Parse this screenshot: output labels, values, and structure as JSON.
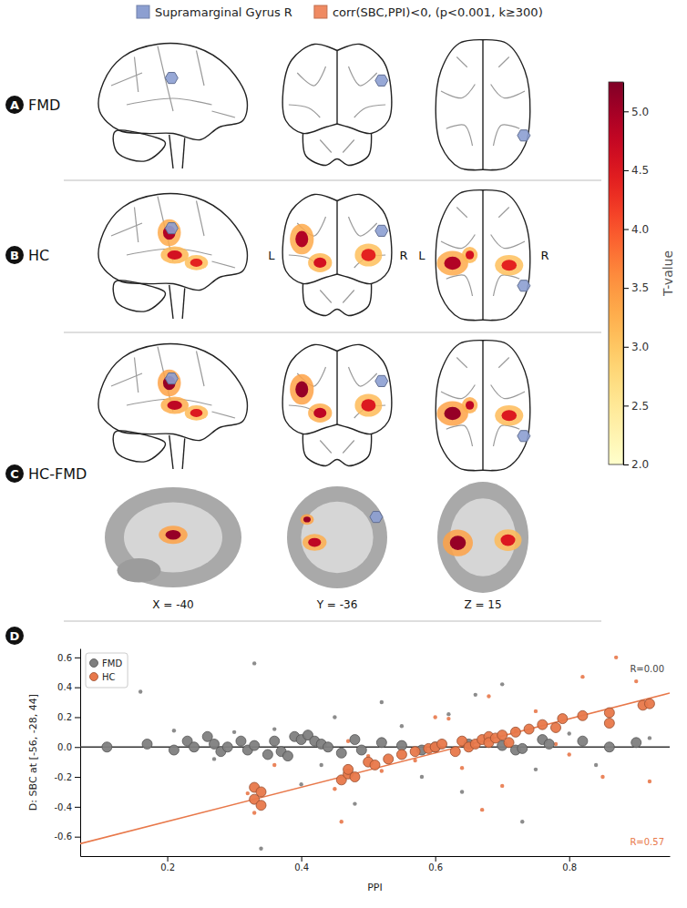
{
  "figure": {
    "legend": [
      {
        "label": "Supramarginal Gyrus R",
        "color": "#8c9fd1"
      },
      {
        "label": "corr(SBC,PPI)<0, (p<0.001, k≥300)",
        "color": "#ef8a62"
      }
    ],
    "panels": [
      {
        "letter": "A",
        "label": "FMD",
        "clusters": []
      },
      {
        "letter": "B",
        "label": "HC",
        "side_labels": [
          "L",
          "R"
        ],
        "clusters": [
          {
            "peak_t": 4.9
          },
          {
            "peak_t": 4.6
          },
          {
            "peak_t": 4.4
          }
        ]
      },
      {
        "letter": "C",
        "label": "HC-FMD",
        "clusters": [
          {
            "peak_t": 5.1
          },
          {
            "peak_t": 4.8
          },
          {
            "peak_t": 4.5
          }
        ],
        "slices": [
          "X = -40",
          "Y = -36",
          "Z = 15"
        ]
      }
    ],
    "colorbar": {
      "label": "T-value",
      "range": [
        2.0,
        5.25
      ],
      "ticks": [
        {
          "value": 2,
          "label": "2.0"
        },
        {
          "value": 2.5,
          "label": "2.5"
        },
        {
          "value": 3,
          "label": "3.0"
        },
        {
          "value": 3.5,
          "label": "3.5"
        },
        {
          "value": 4,
          "label": "4.0"
        },
        {
          "value": 4.5,
          "label": "4.5"
        },
        {
          "value": 5,
          "label": "5.0"
        }
      ]
    },
    "chart_letter": "D"
  },
  "chart_data": {
    "type": "scatter",
    "x_label": "PPI",
    "y_label": "D: SBC at [-56, -28, 44]",
    "xlim": [
      0.07,
      0.95
    ],
    "ylim": [
      -0.73,
      0.66
    ],
    "xticks": [
      0.2,
      0.4,
      0.6,
      0.8
    ],
    "yticks": [
      -0.6,
      -0.4,
      -0.2,
      {
        "value": 0,
        "label": "0.0"
      },
      0.2,
      0.4,
      0.6
    ],
    "legend": "upper left",
    "annotations": [
      {
        "text": "R=0.00",
        "color": "#444444"
      },
      {
        "text": "R=0.57",
        "color": "#e8784a"
      }
    ],
    "series": [
      {
        "name": "FMD",
        "color": "#7f7f7f",
        "marker": "circle",
        "x": [
          0.11,
          0.17,
          0.21,
          0.23,
          0.24,
          0.26,
          0.27,
          0.28,
          0.29,
          0.31,
          0.32,
          0.33,
          0.35,
          0.36,
          0.37,
          0.38,
          0.39,
          0.4,
          0.41,
          0.42,
          0.43,
          0.44,
          0.46,
          0.48,
          0.49,
          0.52,
          0.55,
          0.58,
          0.6,
          0.65,
          0.7,
          0.72,
          0.73,
          0.76,
          0.77,
          0.82,
          0.86,
          0.9
        ],
        "values": [
          0.0,
          0.02,
          -0.02,
          0.04,
          0.0,
          0.07,
          0.02,
          -0.03,
          0.0,
          0.04,
          -0.02,
          0.01,
          -0.05,
          0.04,
          -0.03,
          -0.06,
          0.07,
          0.05,
          0.08,
          0.04,
          0.02,
          0.0,
          -0.04,
          0.05,
          -0.02,
          0.03,
          0.01,
          -0.02,
          0.0,
          0.02,
          0.01,
          -0.02,
          -0.01,
          0.05,
          0.02,
          0.04,
          0.0,
          0.03
        ]
      },
      {
        "name": "HC",
        "color": "#e8784a",
        "marker": "circle",
        "x": [
          0.33,
          0.34,
          0.33,
          0.34,
          0.46,
          0.47,
          0.47,
          0.48,
          0.5,
          0.51,
          0.53,
          0.55,
          0.57,
          0.59,
          0.6,
          0.61,
          0.63,
          0.64,
          0.65,
          0.66,
          0.67,
          0.68,
          0.68,
          0.69,
          0.7,
          0.71,
          0.72,
          0.74,
          0.76,
          0.78,
          0.79,
          0.82,
          0.86,
          0.86,
          0.91,
          0.92
        ],
        "values": [
          -0.27,
          -0.3,
          -0.35,
          -0.39,
          -0.22,
          -0.18,
          -0.15,
          -0.2,
          -0.1,
          -0.12,
          -0.08,
          -0.05,
          -0.03,
          -0.01,
          0.0,
          0.02,
          -0.03,
          0.04,
          0.0,
          0.02,
          0.05,
          0.07,
          0.03,
          0.06,
          0.08,
          0.03,
          0.1,
          0.12,
          0.15,
          0.13,
          0.19,
          0.21,
          0.23,
          0.16,
          0.28,
          0.29
        ]
      },
      {
        "color": "#7f7f7f",
        "marker": "dot",
        "x": [
          0.16,
          0.33,
          0.34,
          0.21,
          0.3,
          0.4,
          0.43,
          0.45,
          0.48,
          0.52,
          0.55,
          0.58,
          0.62,
          0.64,
          0.66,
          0.7,
          0.73,
          0.75,
          0.8,
          0.84,
          0.92,
          0.27,
          0.36
        ],
        "values": [
          0.37,
          0.56,
          -0.68,
          0.11,
          0.1,
          -0.25,
          -0.12,
          0.2,
          -0.38,
          0.3,
          0.14,
          -0.2,
          0.22,
          -0.3,
          0.35,
          0.42,
          -0.5,
          -0.15,
          0.09,
          -0.12,
          0.06,
          -0.08,
          0.12
        ]
      },
      {
        "color": "#e8784a",
        "marker": "dot",
        "x": [
          0.32,
          0.33,
          0.36,
          0.45,
          0.46,
          0.47,
          0.5,
          0.52,
          0.57,
          0.6,
          0.62,
          0.64,
          0.67,
          0.68,
          0.7,
          0.72,
          0.75,
          0.78,
          0.8,
          0.82,
          0.85,
          0.87,
          0.9,
          0.92
        ],
        "values": [
          -0.31,
          -0.44,
          -0.12,
          -0.28,
          -0.5,
          0.04,
          -0.06,
          -0.16,
          -0.09,
          0.2,
          0.19,
          -0.14,
          -0.42,
          0.34,
          -0.26,
          0.11,
          0.24,
          0.02,
          -0.05,
          0.47,
          -0.2,
          0.6,
          0.44,
          -0.23
        ]
      },
      {
        "type": "line",
        "color": "#333333",
        "line_style": "solid",
        "x": [
          0.07,
          0.95
        ],
        "values": [
          0.0,
          0.0
        ]
      },
      {
        "type": "line",
        "color": "#e8784a",
        "line_style": "solid",
        "x": [
          0.07,
          0.95
        ],
        "values": [
          -0.647,
          0.361
        ]
      }
    ]
  }
}
